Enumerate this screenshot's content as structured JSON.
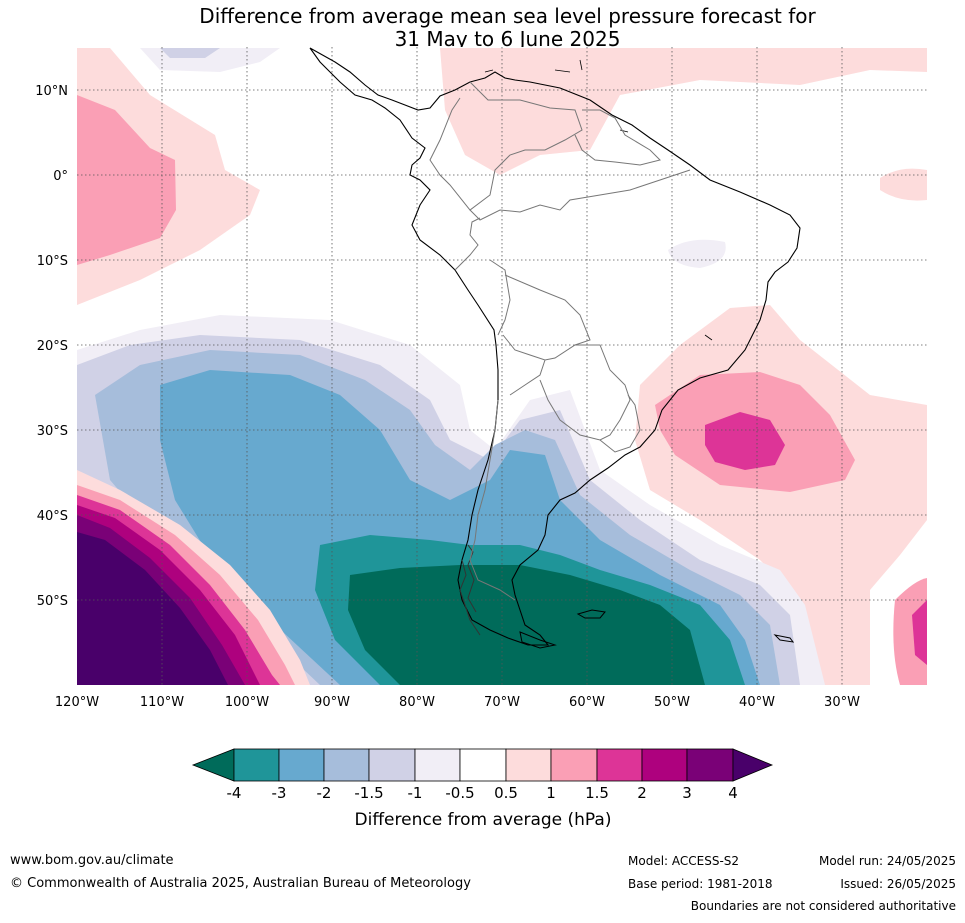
{
  "title": {
    "line1": "Difference from average mean sea level pressure forecast for",
    "line2": "31 May to 6 June 2025"
  },
  "map": {
    "lon_labels": [
      "120°W",
      "110°W",
      "100°W",
      "90°W",
      "80°W",
      "70°W",
      "60°W",
      "50°W",
      "40°W",
      "30°W"
    ],
    "lat_labels": [
      "10°N",
      "0°",
      "10°S",
      "20°S",
      "30°S",
      "40°S",
      "50°S"
    ]
  },
  "colorbar": {
    "label": "Difference from average (hPa)",
    "ticks": [
      "-4",
      "-3",
      "-2",
      "-1.5",
      "-1",
      "-0.5",
      "0.5",
      "1",
      "1.5",
      "2",
      "3",
      "4"
    ],
    "colors": {
      "lt_-4": "#006b5a",
      "m4_m3": "#1f9599",
      "m3_m2": "#67a9cf",
      "m2_m15": "#a6bddb",
      "m15_m1": "#d0d1e6",
      "m1_m05": "#f1eef6",
      "m05_05": "#ffffff",
      "p05_1": "#fddcdc",
      "p1_15": "#fa9fb5",
      "p15_2": "#dd3497",
      "p2_3": "#ae017e",
      "p3_4": "#7a0177",
      "gt_4": "#49006a"
    }
  },
  "footer": {
    "website": "www.bom.gov.au/climate",
    "copyright": "© Commonwealth of Australia 2025, Australian Bureau of Meteorology",
    "model": "Model: ACCESS-S2",
    "base_period": "Base period: 1981-2018",
    "model_run": "Model run: 24/05/2025",
    "issued": "Issued: 26/05/2025",
    "disclaimer": "Boundaries are not considered authoritative"
  }
}
